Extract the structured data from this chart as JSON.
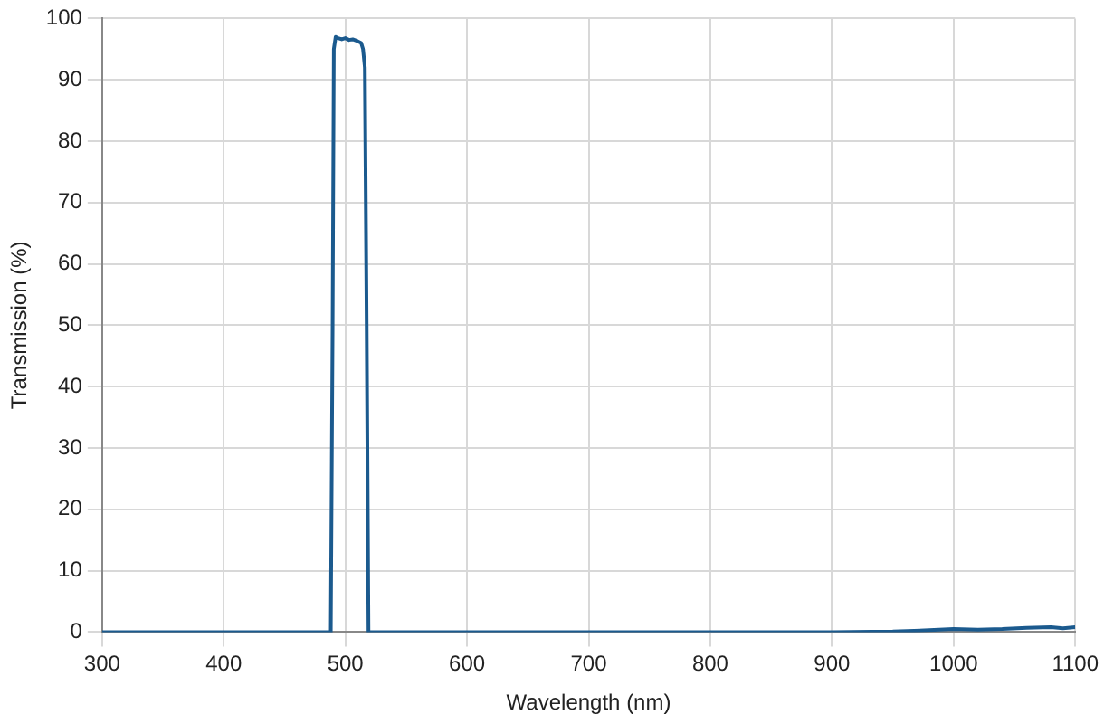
{
  "chart_data": {
    "type": "line",
    "xlabel": "Wavelength (nm)",
    "ylabel": "Transmission (%)",
    "x": [
      300,
      488,
      489.5,
      490.5,
      492,
      494,
      497,
      500,
      503,
      506,
      510,
      513,
      514.5,
      516,
      517.5,
      519,
      700,
      900,
      950,
      980,
      1000,
      1020,
      1040,
      1060,
      1080,
      1090,
      1100
    ],
    "series": [
      {
        "color": "#1b5a8e",
        "values": [
          0,
          0,
          50,
          95,
          97,
          96.8,
          96.6,
          96.8,
          96.5,
          96.6,
          96.3,
          96,
          95,
          92,
          50,
          0,
          0,
          0,
          0.1,
          0.3,
          0.5,
          0.4,
          0.5,
          0.7,
          0.8,
          0.6,
          0.8
        ]
      }
    ],
    "xlim": [
      300,
      1100
    ],
    "xticks": [
      300,
      400,
      500,
      600,
      700,
      800,
      900,
      1000,
      1100
    ],
    "ylim": [
      0,
      100
    ],
    "yticks": [
      0,
      10,
      20,
      30,
      40,
      50,
      60,
      70,
      80,
      90,
      100
    ],
    "grid": true,
    "legend": false,
    "marker": "none",
    "line_style": "solid"
  }
}
